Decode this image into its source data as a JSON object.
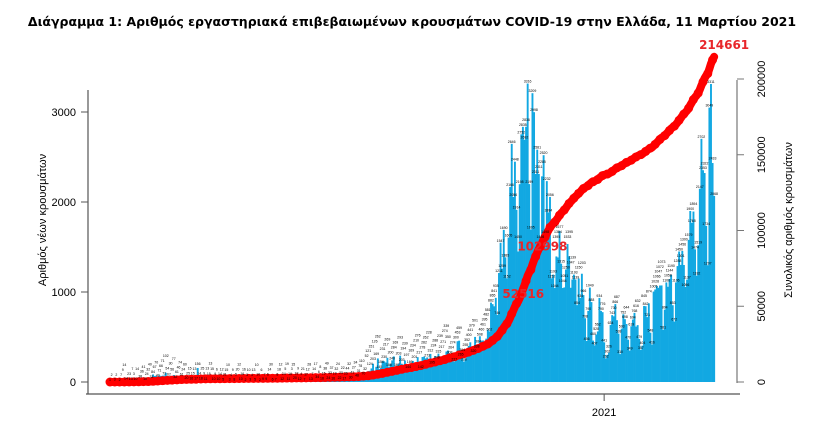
{
  "chart_data": {
    "type": "bar+line",
    "title": "Διάγραμμα 1: Αριθμός εργαστηριακά επιβεβαιωμένων κρουσμάτων COVID-19 στην Ελλάδα, 11 Μαρτίου 2021",
    "ylabel": "Αριθμός νέων κρουσμάτων",
    "y2label": "Συνολικός αριθμός κρουσμάτων",
    "x_start": "2020-02-26",
    "x_end": "2021-03-11",
    "x_ticks": [
      {
        "date": "2021-01-01",
        "label": "2021"
      }
    ],
    "ylim": [
      0,
      3000
    ],
    "y_ticks": [
      "0",
      "1000",
      "2000",
      "3000"
    ],
    "y2lim": [
      0,
      200000
    ],
    "y2_ticks": [
      "0",
      "50000",
      "100000",
      "150000",
      "200000"
    ],
    "grid": false,
    "colors": {
      "bars": "#12a8e2",
      "cumulative": "#ff0000",
      "annotation": "#e8262a"
    },
    "series": [
      {
        "type": "bar",
        "axis": "left",
        "values": [
          1,
          2,
          0,
          3,
          2,
          0,
          2,
          7,
          9,
          14,
          14,
          0,
          23,
          13,
          7,
          3,
          10,
          14,
          0,
          38,
          36,
          41,
          10,
          24,
          32,
          40,
          33,
          84,
          67,
          70,
          49,
          71,
          66,
          71,
          72,
          102,
          54,
          62,
          30,
          56,
          77,
          32,
          61,
          46,
          74,
          61,
          24,
          60,
          20,
          25,
          15,
          16,
          15,
          13,
          17,
          156,
          14,
          18,
          25,
          9,
          11,
          13,
          15,
          13,
          15,
          10,
          9,
          6,
          10,
          14,
          12,
          5,
          21,
          15,
          10,
          3,
          4,
          9,
          8,
          5,
          20,
          12,
          10,
          16,
          16,
          2,
          3,
          10,
          3,
          4,
          13,
          5,
          10,
          10,
          2,
          6,
          9,
          7,
          9,
          6,
          14,
          30,
          6,
          0,
          7,
          8,
          18,
          12,
          12,
          24,
          5,
          19,
          11,
          16,
          3,
          15,
          20,
          18,
          9,
          12,
          4,
          21,
          7,
          17,
          12,
          28,
          13,
          7,
          14,
          17,
          34,
          6,
          8,
          18,
          15,
          38,
          49,
          24,
          33,
          37,
          16,
          19,
          32,
          24,
          22,
          25,
          22,
          17,
          25,
          44,
          32,
          30,
          41,
          27,
          34,
          48,
          31,
          78,
          110,
          70,
          32,
          52,
          121,
          124,
          151,
          203,
          126,
          169,
          262,
          145,
          156,
          231,
          230,
          217,
          269,
          168,
          200,
          240,
          284,
          169,
          167,
          203,
          293,
          203,
          194,
          239,
          197,
          144,
          166,
          169,
          234,
          201,
          210,
          276,
          217,
          142,
          278,
          282,
          262,
          273,
          228,
          312,
          195,
          224,
          288,
          249,
          315,
          239,
          217,
          271,
          274,
          339,
          350,
          308,
          264,
          274,
          227,
          300,
          453,
          459,
          265,
          304,
          226,
          255,
          352,
          400,
          441,
          379,
          320,
          501,
          338,
          384,
          508,
          460,
          461,
          395,
          482,
          581,
          562,
          882,
          865,
          841,
          935,
          746,
          1211,
          1547,
          1259,
          1690,
          1385,
          1152,
          1605,
          2166,
          2646,
          2056,
          2448,
          1914,
          1450,
          2198,
          2752,
          2835,
          2692,
          2836,
          3316,
          2199,
          1695,
          3209,
          2998,
          2311,
          2581,
          2311,
          1498,
          2285,
          2520,
          1498,
          2232,
          1884,
          2056,
          1152,
          1193,
          1044,
          1395,
          1384,
          1677,
          1315,
          1044,
          1051,
          1250,
          1533,
          1395,
          1047,
          1139,
          1193,
          1139,
          854,
          1150,
          934,
          1203,
          966,
          708,
          456,
          790,
          1049,
          888,
          460,
          407,
          528,
          562,
          934,
          790,
          776,
          441,
          262,
          302,
          326,
          634,
          743,
          730,
          866,
          687,
          538,
          310,
          593,
          752,
          698,
          644,
          470,
          349,
          619,
          694,
          768,
          616,
          632,
          479,
          357,
          404,
          845,
          842,
          721,
          874,
          548,
          416,
          1005,
          1028,
          1066,
          1047,
          1072,
          1073,
          581,
          804,
          1106,
          1058,
          1144,
          1190,
          853,
          672,
          1106,
          1288,
          1450,
          1301,
          1456,
          1300,
          1056,
          1137,
          1579,
          1900,
          1768,
          1894,
          1474,
          1182,
          1519,
          2147,
          2702,
          2353,
          2322,
          1734,
          1297,
          3049,
          3311,
          2433,
          2068
        ]
      },
      {
        "type": "line",
        "axis": "right",
        "cumulative_of": "bar",
        "final_value": 214661
      }
    ],
    "annotations": [
      {
        "text": "52516",
        "date": "2020-11-10"
      },
      {
        "text": "102998",
        "date": "2020-11-22"
      },
      {
        "text": "214661",
        "date": "2021-03-11"
      }
    ]
  }
}
